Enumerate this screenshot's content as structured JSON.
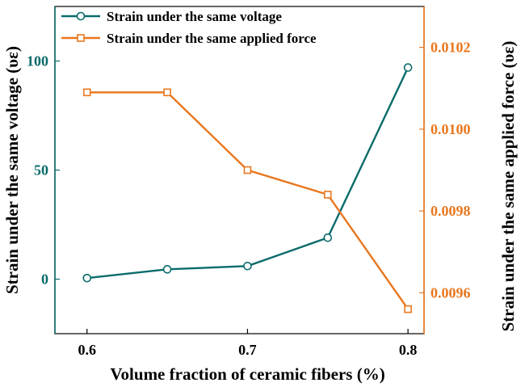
{
  "chart_data": {
    "type": "line",
    "x": [
      0.6,
      0.65,
      0.7,
      0.75,
      0.8
    ],
    "xlabel": "Volume fraction of ceramic fibers (%)",
    "xlim": [
      0.58,
      0.81
    ],
    "xticks": [
      "0.6",
      "0.7",
      "0.8"
    ],
    "xtick_values": [
      0.6,
      0.7,
      0.8
    ],
    "y_left": {
      "label": "Strain under the same voltage (υε)",
      "lim": [
        -25,
        125
      ],
      "ticks": [
        "0",
        "50",
        "100"
      ],
      "tick_values": [
        0,
        50,
        100
      ],
      "color": "#0b6b6b"
    },
    "y_right": {
      "label": "Strain under the same applied force (υε)",
      "lim": [
        0.0095,
        0.0103
      ],
      "ticks": [
        "0.0096",
        "0.0098",
        "0.0100",
        "0.0102"
      ],
      "tick_values": [
        0.0096,
        0.0098,
        0.01,
        0.0102
      ],
      "color": "#e8771e"
    },
    "series": [
      {
        "name": "Strain under the same voltage",
        "axis": "left",
        "marker": "circle",
        "color": "#0b6b6b",
        "values": [
          0.5,
          4.5,
          6,
          19,
          97
        ]
      },
      {
        "name": "Strain under the same applied force",
        "axis": "right",
        "marker": "square",
        "color": "#e8771e",
        "values": [
          0.01009,
          0.01009,
          0.0099,
          0.00984,
          0.00956
        ]
      }
    ],
    "legend": "top-left",
    "grid": false
  }
}
